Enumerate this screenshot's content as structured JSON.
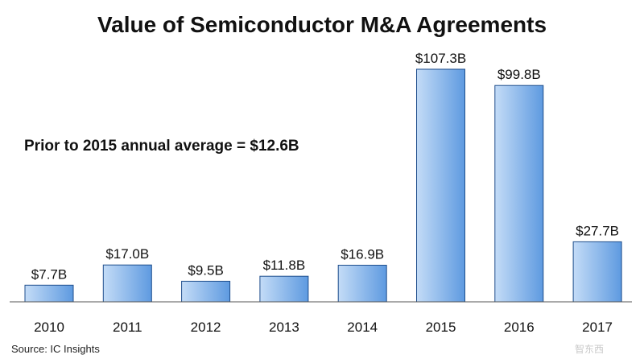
{
  "chart_data": {
    "type": "bar",
    "title": "Value of Semiconductor M&A Agreements",
    "categories": [
      "2010",
      "2011",
      "2012",
      "2013",
      "2014",
      "2015",
      "2016",
      "2017"
    ],
    "values": [
      7.7,
      17.0,
      9.5,
      11.8,
      16.9,
      107.3,
      99.8,
      27.7
    ],
    "value_labels": [
      "$7.7B",
      "$17.0B",
      "$9.5B",
      "$11.8B",
      "$16.9B",
      "$107.3B",
      "$99.8B",
      "$27.7B"
    ],
    "unit": "$B",
    "ylim": [
      0,
      110
    ],
    "xlabel": "",
    "ylabel": "",
    "grid": false,
    "annotation": "Prior to 2015 annual average = $12.6B",
    "source": "Source: IC Insights",
    "bar_color_light": "#c4dcf7",
    "bar_color_dark": "#5e9ae0",
    "bar_stroke": "#1f4e8c"
  },
  "watermark": "智东西"
}
